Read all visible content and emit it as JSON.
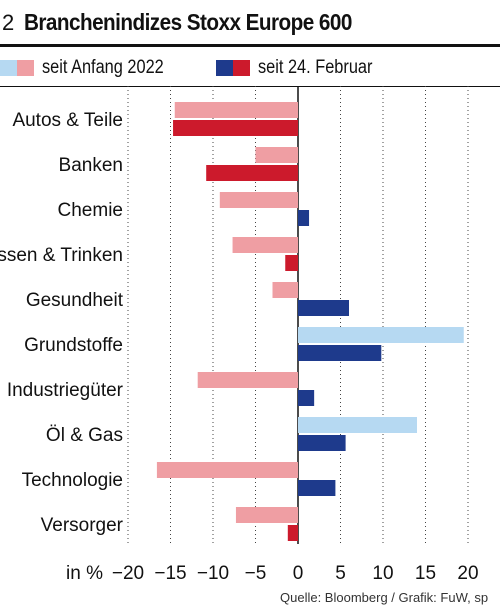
{
  "figure": {
    "number": "2",
    "title": "Branchenindizes Stoxx Europe 600"
  },
  "legend": {
    "items": [
      {
        "label": "seit Anfang 2022",
        "colors": [
          "#b6d9f2",
          "#ef9ea3"
        ]
      },
      {
        "label": "seit 24. Februar",
        "colors": [
          "#1e3a8c",
          "#cc1a2c"
        ]
      }
    ]
  },
  "colors": {
    "pos_light": "#b6d9f2",
    "neg_light": "#ef9ea3",
    "pos_dark": "#1e3a8c",
    "neg_dark": "#cc1a2c"
  },
  "chart_data": {
    "type": "bar",
    "orientation": "horizontal",
    "categories": [
      "Autos & Teile",
      "Banken",
      "Chemie",
      "Essen & Trinken",
      "Gesundheit",
      "Grundstoffe",
      "Industriegüter",
      "Öl & Gas",
      "Technologie",
      "Versorger"
    ],
    "series": [
      {
        "name": "seit Anfang 2022",
        "values": [
          -14.5,
          -5,
          -9.2,
          -7.7,
          -3,
          19.5,
          -11.8,
          14,
          -16.6,
          -7.3
        ]
      },
      {
        "name": "seit 24. Februar",
        "values": [
          -14.7,
          -10.8,
          1.3,
          -1.5,
          6,
          9.8,
          1.9,
          5.6,
          4.4,
          -1.2
        ]
      }
    ],
    "xlabel": "in %",
    "xlim": [
      -20,
      23
    ],
    "ticks": [
      "−20",
      "−15",
      "−10",
      "−5",
      "0",
      "5",
      "10",
      "15",
      "20"
    ],
    "tick_values": [
      -20,
      -15,
      -10,
      -5,
      0,
      5,
      10,
      15,
      20
    ],
    "grid": "vertical dotted",
    "legend_position": "top"
  },
  "source": "Quelle: Bloomberg / Grafik: FuW, sp"
}
